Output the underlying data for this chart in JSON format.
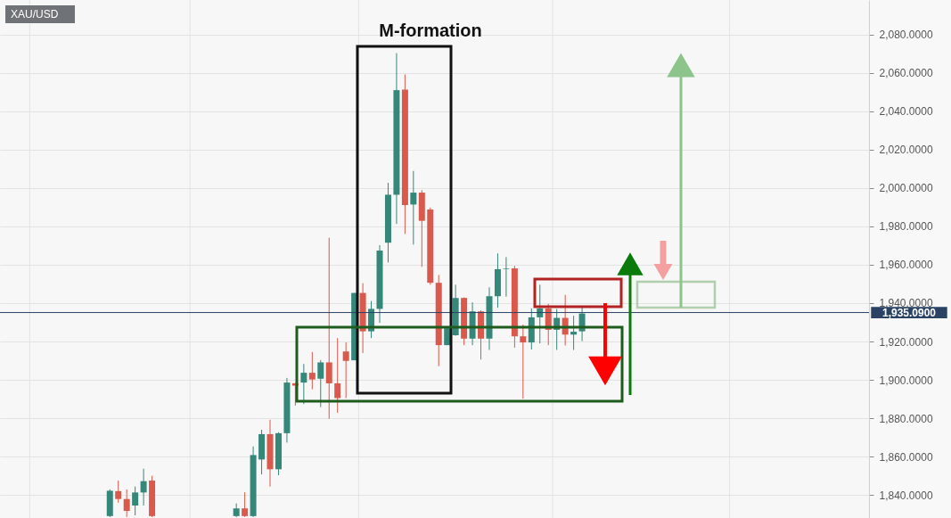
{
  "chart_data": {
    "type": "candlestick",
    "title": "XAU/USD",
    "annotations": [
      "M-formation"
    ],
    "categories": [
      null,
      null,
      null,
      null,
      null,
      null,
      null,
      null,
      null,
      null,
      null,
      null,
      null,
      null,
      null,
      null,
      null,
      null,
      null,
      null,
      null,
      null,
      null,
      null,
      null,
      null,
      null,
      null,
      null,
      null,
      null,
      null,
      null,
      null,
      null,
      null,
      null,
      null,
      null,
      null,
      null,
      null,
      null,
      null,
      null,
      null,
      null,
      null,
      null,
      null,
      null,
      null,
      null,
      null,
      null,
      null,
      null,
      null,
      null,
      null,
      null,
      null,
      null,
      null,
      null,
      null,
      null,
      null,
      null,
      null,
      null,
      null,
      null,
      null,
      null,
      null,
      null,
      null,
      null,
      null,
      null,
      null,
      null,
      null,
      null,
      null,
      null,
      null,
      null,
      null,
      null,
      null,
      null,
      null,
      null,
      null,
      null,
      null,
      null,
      null,
      null,
      null
    ],
    "ohlc": [
      null,
      null,
      null,
      null,
      null,
      null,
      null,
      null,
      null,
      null,
      null,
      null,
      [
        1829,
        1842.9,
        1828.5,
        1842.2
      ],
      [
        1842.0,
        1847.5,
        1836.0,
        1837.9
      ],
      [
        1837.9,
        1842.9,
        1828.6,
        1831.7
      ],
      [
        1834.5,
        1844.4,
        1829.4,
        1841.3
      ],
      [
        1841.3,
        1853.7,
        1834.5,
        1847.2
      ],
      [
        1847.5,
        1850.0,
        1828.5,
        1829
      ],
      null,
      null,
      null,
      null,
      null,
      null,
      null,
      null,
      null,
      [
        1829,
        1835.6,
        1828.5,
        1833.0
      ],
      [
        1833.0,
        1841.4,
        1828.5,
        1829
      ],
      [
        1829,
        1865.3,
        1828.5,
        1860.8
      ],
      [
        1858.5,
        1874.0,
        1850.7,
        1871.7
      ],
      [
        1871.7,
        1879.2,
        1844.4,
        1853.4
      ],
      [
        1853.4,
        1872.7,
        1850.3,
        1872.2
      ],
      [
        1872.2,
        1901.0,
        1867.3,
        1898.6
      ],
      [
        1898.2,
        1898.5,
        1886.6,
        1897.0
      ],
      [
        1898.6,
        1908.3,
        1887.4,
        1903.7
      ],
      [
        1903.7,
        1914.5,
        1895.1,
        1900.2
      ],
      [
        1900.6,
        1910.3,
        1885.8,
        1909.1
      ],
      [
        1909.1,
        1974.1,
        1879.7,
        1898.2
      ],
      [
        1898.2,
        1921.8,
        1882.8,
        1890.5
      ],
      [
        1914.8,
        1919.5,
        1890.5,
        1909.9
      ],
      [
        1910.2,
        1945.3,
        1910.2,
        1945.3
      ],
      [
        1945.3,
        1950.4,
        1914.0,
        1925.3
      ],
      [
        1925.3,
        1941.1,
        1921.8,
        1937.0
      ],
      [
        1937.0,
        1970.2,
        1929.7,
        1967.4
      ],
      [
        1971.5,
        2002.7,
        1961.2,
        1996.5
      ],
      [
        1996.5,
        2070.3,
        1981.3,
        2051.0
      ],
      [
        2051.3,
        2059.2,
        1976.1,
        1991.1
      ],
      [
        1991.4,
        2008.9,
        1970.5,
        1997.6
      ],
      [
        1997.6,
        1998.9,
        1958.9,
        1982.9
      ],
      [
        1988.8,
        1989.8,
        1949.6,
        1950.6
      ],
      [
        1950.6,
        1954.7,
        1907.1,
        1918.1
      ],
      [
        1918.1,
        1926.9,
        1918.1,
        1926.9
      ],
      [
        1923.3,
        1949.6,
        1923.0,
        1942.7
      ],
      [
        1942.7,
        1943.0,
        1918.1,
        1921.5
      ],
      [
        1921.5,
        1940.4,
        1918.1,
        1935.7
      ],
      [
        1935.7,
        1936.2,
        1910.6,
        1921.5
      ],
      [
        1921.5,
        1948.2,
        1915.6,
        1943.6
      ],
      [
        1943.6,
        1965.9,
        1937.6,
        1957.7
      ],
      [
        1957.8,
        1964.0,
        1943.4,
        1958.1
      ],
      [
        1958.1,
        1959.4,
        1916.8,
        1922.7
      ],
      [
        1922.7,
        1928.8,
        1890.2,
        1919.5
      ],
      [
        1919.5,
        1937.2,
        1915.8,
        1932.6
      ],
      [
        1932.6,
        1949.6,
        1919.0,
        1937.2
      ],
      [
        1937.2,
        1939.6,
        1918.1,
        1926.1
      ],
      [
        1926.1,
        1936.9,
        1915.6,
        1932.3
      ],
      [
        1932.3,
        1944.3,
        1917.9,
        1923.6
      ],
      [
        1923.6,
        1933.4,
        1915.6,
        1925.1
      ],
      [
        1925.3,
        1937.7,
        1920.2,
        1934.6
      ],
      null,
      null,
      null,
      null,
      null,
      null,
      null,
      null,
      null,
      null,
      null,
      null,
      null,
      null,
      null,
      null,
      null,
      null,
      null,
      null,
      null,
      null,
      null,
      null,
      null,
      null,
      null,
      null,
      null,
      null,
      null,
      null,
      null
    ],
    "ylim": [
      1828,
      2098
    ],
    "yticks": [
      {
        "value": 1840,
        "label": "1,840.0000"
      },
      {
        "value": 1860,
        "label": "1,860.0000"
      },
      {
        "value": 1880,
        "label": "1,880.0000"
      },
      {
        "value": 1900,
        "label": "1,900.0000"
      },
      {
        "value": 1920,
        "label": "1,920.0000"
      },
      {
        "value": 1940,
        "label": "1,940.0000"
      },
      {
        "value": 1960,
        "label": "1,960.0000"
      },
      {
        "value": 1980,
        "label": "1,980.0000"
      },
      {
        "value": 2000,
        "label": "2,000.0000"
      },
      {
        "value": 2020,
        "label": "2,020.0000"
      },
      {
        "value": 2040,
        "label": "2,040.0000"
      },
      {
        "value": 2060,
        "label": "2,060.0000"
      },
      {
        "value": 2080,
        "label": "2,080.0000"
      }
    ],
    "ref_lines": [
      {
        "axis": "y",
        "value": 1935.09,
        "label": "1,935.0900",
        "color": "#2a4365"
      }
    ],
    "grid": true
  }
}
